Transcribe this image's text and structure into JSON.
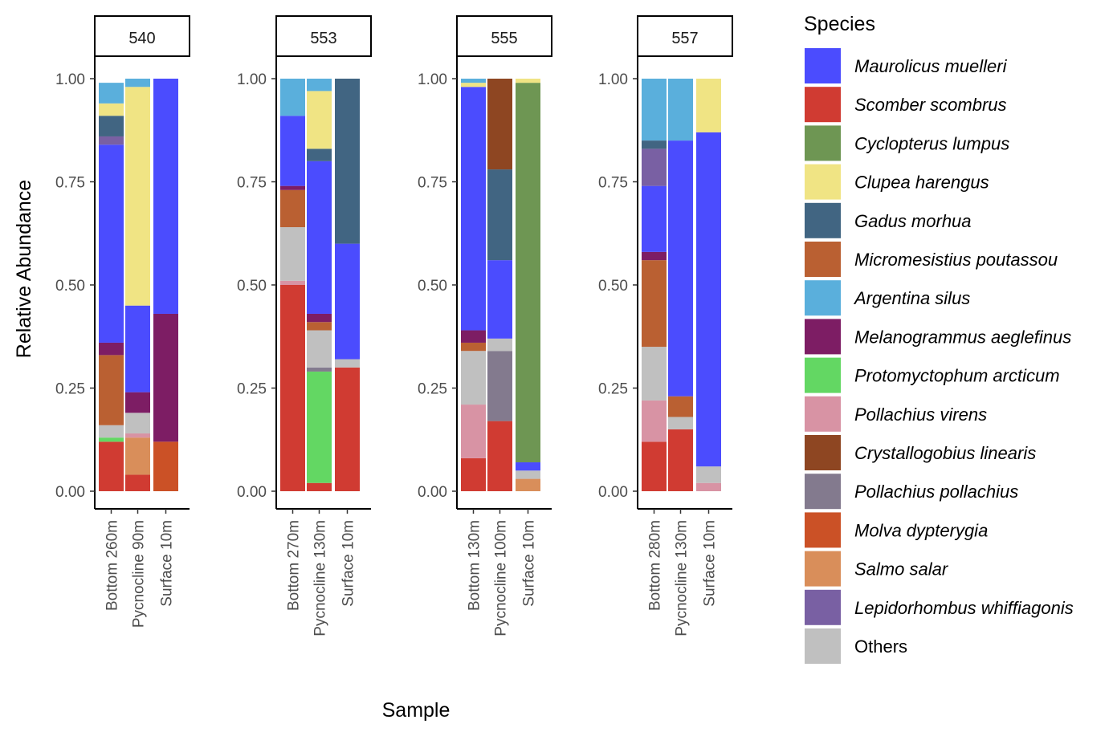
{
  "chart_data": {
    "type": "stacked-bar",
    "ylabel": "Relative Abundance",
    "xlabel": "Sample",
    "ylim": [
      0,
      1
    ],
    "yticks": [
      "0.00",
      "0.25",
      "0.50",
      "0.75",
      "1.00"
    ],
    "legend": {
      "title": "Species",
      "position": "right",
      "items": [
        {
          "key": "mm",
          "label": "Maurolicus muelleri",
          "color": "#4b4cfe",
          "italic": true
        },
        {
          "key": "ss",
          "label": "Scomber scombrus",
          "color": "#d03b32",
          "italic": true
        },
        {
          "key": "cl",
          "label": "Cyclopterus lumpus",
          "color": "#6e9653",
          "italic": true
        },
        {
          "key": "ch",
          "label": "Clupea harengus",
          "color": "#f0e484",
          "italic": true
        },
        {
          "key": "gm",
          "label": "Gadus morhua",
          "color": "#416582",
          "italic": true
        },
        {
          "key": "mp",
          "label": "Micromesistius poutassou",
          "color": "#ba6032",
          "italic": true
        },
        {
          "key": "as",
          "label": "Argentina silus",
          "color": "#5aafdc",
          "italic": true
        },
        {
          "key": "ma",
          "label": "Melanogrammus aeglefinus",
          "color": "#7d1d64",
          "italic": true
        },
        {
          "key": "pa",
          "label": "Protomyctophum arcticum",
          "color": "#63d763",
          "italic": true
        },
        {
          "key": "pv",
          "label": "Pollachius virens",
          "color": "#d893a4",
          "italic": true
        },
        {
          "key": "cli",
          "label": "Crystallogobius linearis",
          "color": "#8e4622",
          "italic": true
        },
        {
          "key": "pp",
          "label": "Pollachius pollachius",
          "color": "#837a8e",
          "italic": true
        },
        {
          "key": "md",
          "label": "Molva dypterygia",
          "color": "#cb5126",
          "italic": true
        },
        {
          "key": "sa",
          "label": "Salmo salar",
          "color": "#d98e5a",
          "italic": true
        },
        {
          "key": "lw",
          "label": "Lepidorhombus whiffiagonis",
          "color": "#7960a3",
          "italic": true
        },
        {
          "key": "ot",
          "label": "Others",
          "color": "#c0c0c0",
          "italic": false
        }
      ]
    },
    "panels": [
      {
        "label": "540",
        "bars": [
          {
            "name": "Bottom 260m",
            "segments": [
              {
                "s": "ss",
                "v": 0.12
              },
              {
                "s": "pa",
                "v": 0.01
              },
              {
                "s": "ot",
                "v": 0.03
              },
              {
                "s": "mp",
                "v": 0.17
              },
              {
                "s": "ma",
                "v": 0.03
              },
              {
                "s": "mm",
                "v": 0.48
              },
              {
                "s": "lw",
                "v": 0.02
              },
              {
                "s": "gm",
                "v": 0.05
              },
              {
                "s": "ch",
                "v": 0.03
              },
              {
                "s": "as",
                "v": 0.05
              }
            ]
          },
          {
            "name": "Pycnocline 90m",
            "segments": [
              {
                "s": "ss",
                "v": 0.04
              },
              {
                "s": "sa",
                "v": 0.09
              },
              {
                "s": "pv",
                "v": 0.01
              },
              {
                "s": "ot",
                "v": 0.05
              },
              {
                "s": "ma",
                "v": 0.05
              },
              {
                "s": "mm",
                "v": 0.21
              },
              {
                "s": "ch",
                "v": 0.53
              },
              {
                "s": "as",
                "v": 0.02
              }
            ]
          },
          {
            "name": "Surface 10m",
            "segments": [
              {
                "s": "md",
                "v": 0.12
              },
              {
                "s": "ma",
                "v": 0.31
              },
              {
                "s": "mm",
                "v": 0.57
              }
            ]
          }
        ]
      },
      {
        "label": "553",
        "bars": [
          {
            "name": "Bottom 270m",
            "segments": [
              {
                "s": "ss",
                "v": 0.5
              },
              {
                "s": "pv",
                "v": 0.01
              },
              {
                "s": "ot",
                "v": 0.13
              },
              {
                "s": "mp",
                "v": 0.09
              },
              {
                "s": "ma",
                "v": 0.01
              },
              {
                "s": "mm",
                "v": 0.17
              },
              {
                "s": "gm",
                "v": 0.0
              },
              {
                "s": "as",
                "v": 0.09
              }
            ]
          },
          {
            "name": "Pycnocline 130m",
            "segments": [
              {
                "s": "ss",
                "v": 0.02
              },
              {
                "s": "pa",
                "v": 0.27
              },
              {
                "s": "pp",
                "v": 0.01
              },
              {
                "s": "ot",
                "v": 0.09
              },
              {
                "s": "mp",
                "v": 0.02
              },
              {
                "s": "ma",
                "v": 0.02
              },
              {
                "s": "mm",
                "v": 0.37
              },
              {
                "s": "gm",
                "v": 0.03
              },
              {
                "s": "ch",
                "v": 0.14
              },
              {
                "s": "as",
                "v": 0.03
              }
            ]
          },
          {
            "name": "Surface 10m",
            "segments": [
              {
                "s": "ss",
                "v": 0.3
              },
              {
                "s": "ot",
                "v": 0.02
              },
              {
                "s": "mm",
                "v": 0.28
              },
              {
                "s": "gm",
                "v": 0.4
              }
            ]
          }
        ]
      },
      {
        "label": "555",
        "bars": [
          {
            "name": "Bottom 130m",
            "segments": [
              {
                "s": "ss",
                "v": 0.08
              },
              {
                "s": "pv",
                "v": 0.13
              },
              {
                "s": "ot",
                "v": 0.13
              },
              {
                "s": "mp",
                "v": 0.02
              },
              {
                "s": "ma",
                "v": 0.03
              },
              {
                "s": "mm",
                "v": 0.59
              },
              {
                "s": "ch",
                "v": 0.01
              },
              {
                "s": "as",
                "v": 0.01
              }
            ]
          },
          {
            "name": "Pycnocline 100m",
            "segments": [
              {
                "s": "ss",
                "v": 0.17
              },
              {
                "s": "pp",
                "v": 0.17
              },
              {
                "s": "ot",
                "v": 0.03
              },
              {
                "s": "mm",
                "v": 0.19
              },
              {
                "s": "gm",
                "v": 0.22
              },
              {
                "s": "cli",
                "v": 0.22
              }
            ]
          },
          {
            "name": "Surface 10m",
            "segments": [
              {
                "s": "sa",
                "v": 0.03
              },
              {
                "s": "ot",
                "v": 0.02
              },
              {
                "s": "mm",
                "v": 0.02
              },
              {
                "s": "cl",
                "v": 0.92
              },
              {
                "s": "ch",
                "v": 0.01
              }
            ]
          }
        ]
      },
      {
        "label": "557",
        "bars": [
          {
            "name": "Bottom 280m",
            "segments": [
              {
                "s": "ss",
                "v": 0.12
              },
              {
                "s": "pv",
                "v": 0.1
              },
              {
                "s": "ot",
                "v": 0.13
              },
              {
                "s": "mp",
                "v": 0.21
              },
              {
                "s": "ma",
                "v": 0.02
              },
              {
                "s": "mm",
                "v": 0.16
              },
              {
                "s": "lw",
                "v": 0.09
              },
              {
                "s": "gm",
                "v": 0.02
              },
              {
                "s": "as",
                "v": 0.15
              }
            ]
          },
          {
            "name": "Pycnocline 130m",
            "segments": [
              {
                "s": "ss",
                "v": 0.15
              },
              {
                "s": "ot",
                "v": 0.03
              },
              {
                "s": "mp",
                "v": 0.05
              },
              {
                "s": "mm",
                "v": 0.62
              },
              {
                "s": "as",
                "v": 0.15
              }
            ]
          },
          {
            "name": "Surface 10m",
            "segments": [
              {
                "s": "pv",
                "v": 0.02
              },
              {
                "s": "ot",
                "v": 0.04
              },
              {
                "s": "mm",
                "v": 0.81
              },
              {
                "s": "ch",
                "v": 0.13
              }
            ]
          }
        ]
      }
    ]
  }
}
